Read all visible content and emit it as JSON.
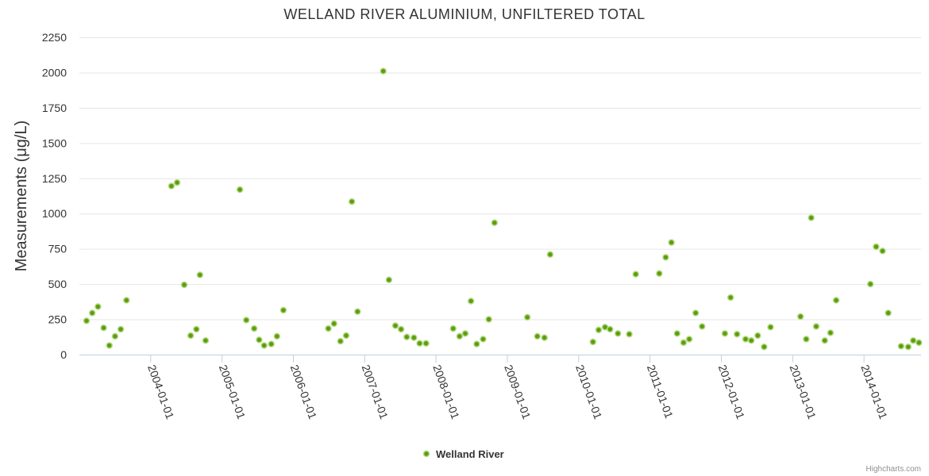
{
  "credits": "Highcharts.com",
  "colors": {
    "marker": "#5aa00a",
    "marker_stroke": "#b8d88a",
    "grid": "#e6e6e6",
    "axis": "#c0d0e0"
  },
  "chart_data": {
    "type": "scatter",
    "title": "WELLAND RIVER ALUMINIUM, UNFILTERED TOTAL",
    "ylabel": "Measurements (μg/L)",
    "xlabel": "",
    "ylim": [
      0,
      2250
    ],
    "yticks": [
      "0",
      "250",
      "500",
      "750",
      "1000",
      "1250",
      "1500",
      "1750",
      "2000",
      "2250"
    ],
    "xlim": [
      2003.0,
      2014.8
    ],
    "xticks": [
      {
        "label": "2004-01-01",
        "x": 2004.0
      },
      {
        "label": "2005-01-01",
        "x": 2005.0
      },
      {
        "label": "2006-01-01",
        "x": 2006.0
      },
      {
        "label": "2007-01-01",
        "x": 2007.0
      },
      {
        "label": "2008-01-01",
        "x": 2008.0
      },
      {
        "label": "2009-01-01",
        "x": 2009.0
      },
      {
        "label": "2010-01-01",
        "x": 2010.0
      },
      {
        "label": "2011-01-01",
        "x": 2011.0
      },
      {
        "label": "2012-01-01",
        "x": 2012.0
      },
      {
        "label": "2013-01-01",
        "x": 2013.0
      },
      {
        "label": "2014-01-01",
        "x": 2014.0
      }
    ],
    "grid": true,
    "legend_position": "bottom-center",
    "series": [
      {
        "name": "Welland River",
        "points": [
          [
            2003.1,
            240
          ],
          [
            2003.18,
            295
          ],
          [
            2003.26,
            340
          ],
          [
            2003.34,
            190
          ],
          [
            2003.42,
            65
          ],
          [
            2003.5,
            130
          ],
          [
            2003.58,
            180
          ],
          [
            2003.66,
            385
          ],
          [
            2004.29,
            1195
          ],
          [
            2004.37,
            1220
          ],
          [
            2004.47,
            495
          ],
          [
            2004.56,
            135
          ],
          [
            2004.64,
            180
          ],
          [
            2004.69,
            565
          ],
          [
            2004.77,
            100
          ],
          [
            2005.25,
            1170
          ],
          [
            2005.34,
            245
          ],
          [
            2005.45,
            185
          ],
          [
            2005.52,
            105
          ],
          [
            2005.59,
            65
          ],
          [
            2005.69,
            75
          ],
          [
            2005.77,
            130
          ],
          [
            2005.86,
            315
          ],
          [
            2006.49,
            185
          ],
          [
            2006.57,
            220
          ],
          [
            2006.66,
            95
          ],
          [
            2006.74,
            135
          ],
          [
            2006.82,
            1085
          ],
          [
            2006.9,
            305
          ],
          [
            2007.26,
            2010
          ],
          [
            2007.34,
            530
          ],
          [
            2007.43,
            205
          ],
          [
            2007.51,
            180
          ],
          [
            2007.59,
            125
          ],
          [
            2007.69,
            120
          ],
          [
            2007.77,
            80
          ],
          [
            2007.86,
            80
          ],
          [
            2008.24,
            185
          ],
          [
            2008.33,
            130
          ],
          [
            2008.41,
            150
          ],
          [
            2008.49,
            380
          ],
          [
            2008.57,
            75
          ],
          [
            2008.66,
            110
          ],
          [
            2008.74,
            250
          ],
          [
            2008.82,
            935
          ],
          [
            2009.28,
            265
          ],
          [
            2009.42,
            130
          ],
          [
            2009.52,
            120
          ],
          [
            2009.6,
            710
          ],
          [
            2010.2,
            90
          ],
          [
            2010.28,
            175
          ],
          [
            2010.37,
            195
          ],
          [
            2010.44,
            180
          ],
          [
            2010.55,
            150
          ],
          [
            2010.71,
            145
          ],
          [
            2010.8,
            570
          ],
          [
            2011.13,
            575
          ],
          [
            2011.22,
            690
          ],
          [
            2011.3,
            795
          ],
          [
            2011.38,
            150
          ],
          [
            2011.47,
            85
          ],
          [
            2011.55,
            110
          ],
          [
            2011.64,
            295
          ],
          [
            2011.73,
            200
          ],
          [
            2012.05,
            150
          ],
          [
            2012.13,
            405
          ],
          [
            2012.22,
            145
          ],
          [
            2012.34,
            110
          ],
          [
            2012.42,
            100
          ],
          [
            2012.51,
            135
          ],
          [
            2012.6,
            55
          ],
          [
            2012.69,
            195
          ],
          [
            2013.11,
            270
          ],
          [
            2013.19,
            110
          ],
          [
            2013.26,
            970
          ],
          [
            2013.33,
            200
          ],
          [
            2013.45,
            100
          ],
          [
            2013.53,
            155
          ],
          [
            2013.61,
            385
          ],
          [
            2014.09,
            500
          ],
          [
            2014.17,
            765
          ],
          [
            2014.26,
            735
          ],
          [
            2014.34,
            295
          ],
          [
            2014.52,
            60
          ],
          [
            2014.62,
            55
          ],
          [
            2014.69,
            100
          ],
          [
            2014.77,
            85
          ]
        ]
      }
    ]
  }
}
